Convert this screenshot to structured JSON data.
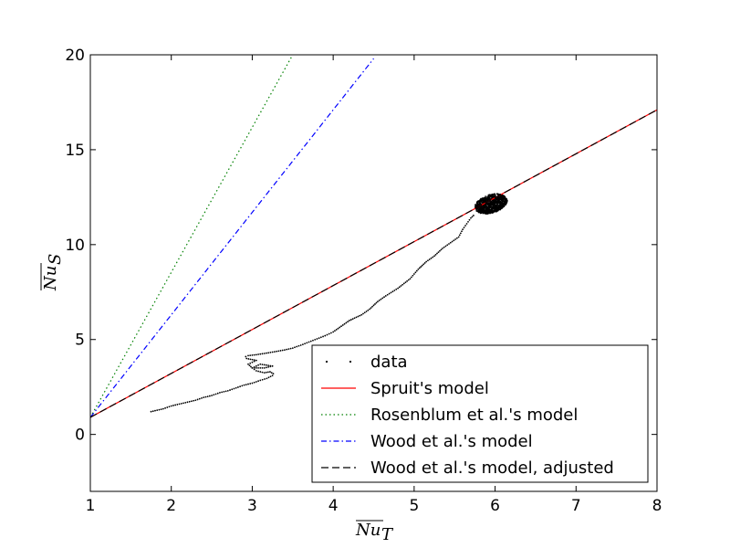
{
  "chart_data": {
    "type": "line",
    "title": "",
    "xlabel": "Nu",
    "xlabel_sub": "T",
    "ylabel": "Nu",
    "ylabel_sub": "S",
    "xlim": [
      1,
      8
    ],
    "ylim": [
      -3,
      20
    ],
    "xticks": [
      1,
      2,
      3,
      4,
      5,
      6,
      7,
      8
    ],
    "yticks": [
      0,
      5,
      10,
      15,
      20
    ],
    "grid": false,
    "legend_position": "lower-right",
    "series": [
      {
        "name": "data",
        "style": "dots",
        "color": "#000000",
        "x": [
          1.75,
          1.8,
          1.9,
          2.0,
          2.1,
          2.2,
          2.3,
          2.4,
          2.5,
          2.6,
          2.7,
          2.8,
          2.9,
          3.0,
          3.1,
          3.18,
          3.25,
          3.26,
          3.22,
          3.15,
          3.05,
          3.0,
          3.15,
          3.25,
          3.1,
          3.0,
          2.95,
          3.05,
          2.93,
          2.92,
          2.95,
          3.05,
          3.2,
          3.4,
          3.5,
          3.6,
          3.75,
          3.9,
          4.0,
          4.1,
          4.2,
          4.35,
          4.45,
          4.55,
          4.65,
          4.8,
          4.95,
          5.05,
          5.15,
          5.25,
          5.35,
          5.45,
          5.55,
          5.6,
          5.65,
          5.7,
          5.75
        ],
        "y": [
          1.2,
          1.25,
          1.35,
          1.5,
          1.6,
          1.7,
          1.8,
          1.95,
          2.05,
          2.2,
          2.3,
          2.45,
          2.6,
          2.7,
          2.85,
          2.95,
          3.1,
          3.2,
          3.3,
          3.25,
          3.35,
          3.5,
          3.5,
          3.6,
          3.7,
          3.5,
          3.7,
          3.9,
          4.0,
          4.1,
          4.15,
          4.2,
          4.3,
          4.45,
          4.55,
          4.7,
          4.95,
          5.2,
          5.4,
          5.7,
          6.0,
          6.3,
          6.6,
          7.0,
          7.3,
          7.7,
          8.2,
          8.7,
          9.1,
          9.4,
          9.8,
          10.1,
          10.4,
          10.8,
          11.1,
          11.4,
          11.6
        ]
      },
      {
        "name": "Spruit's model",
        "style": "solid",
        "color": "#ff0000",
        "x": [
          1,
          8
        ],
        "y": [
          0.9,
          17.1
        ]
      },
      {
        "name": "Rosenblum et al.'s model",
        "style": "dotted",
        "color": "#008000",
        "x": [
          1,
          3.5
        ],
        "y": [
          0.9,
          20
        ]
      },
      {
        "name": "Wood et al.'s model",
        "style": "dashdot",
        "color": "#0000ff",
        "x": [
          1,
          4.5
        ],
        "y": [
          0.9,
          19.8
        ]
      },
      {
        "name": "Wood et al.'s model, adjusted",
        "style": "dashed",
        "color": "#000000",
        "x": [
          1,
          8
        ],
        "y": [
          0.9,
          17.1
        ]
      }
    ],
    "cluster": {
      "center_x": 5.95,
      "center_y": 12.15,
      "spread_x": 0.2,
      "spread_y": 0.5
    }
  }
}
